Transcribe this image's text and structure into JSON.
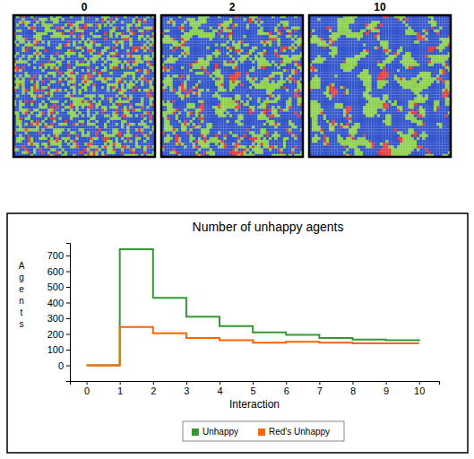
{
  "snapshots": {
    "labels": [
      "0",
      "2",
      "10"
    ]
  },
  "chart_data": {
    "type": "line",
    "title": "Number of unhappy agents",
    "x_label": "Interaction",
    "y_label": "Agents",
    "x": [
      0,
      1,
      2,
      3,
      4,
      5,
      6,
      7,
      8,
      9,
      10
    ],
    "series": [
      {
        "name": "Unhappy",
        "color": "#339933",
        "line_style": "step",
        "values": [
          0,
          740,
          430,
          310,
          250,
          210,
          195,
          175,
          165,
          160,
          155
        ]
      },
      {
        "name": "Red's Unhappy",
        "color": "#ff6600",
        "line_style": "step",
        "values": [
          0,
          245,
          205,
          175,
          160,
          145,
          150,
          145,
          140,
          140,
          140
        ]
      }
    ],
    "xlim": [
      -0.5,
      10.6
    ],
    "xticks": [
      0,
      1,
      2,
      3,
      4,
      5,
      6,
      7,
      8,
      9,
      10
    ],
    "ylim": [
      -100,
      780
    ],
    "yticks": [
      0,
      100,
      200,
      300,
      400,
      500,
      600,
      700
    ],
    "grid": false,
    "legend": "bottom"
  }
}
